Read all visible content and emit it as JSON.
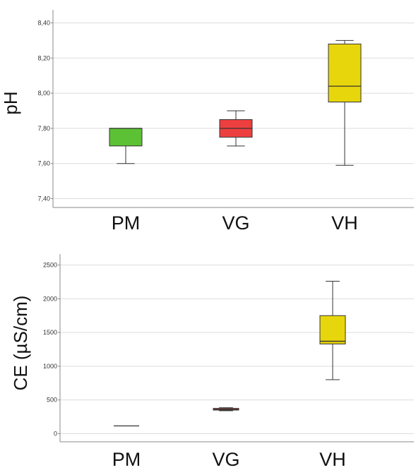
{
  "chart_data": [
    {
      "type": "boxplot",
      "ylabel": "pH",
      "ylim": [
        7.35,
        8.45
      ],
      "yticks": [
        7.4,
        7.6,
        7.8,
        8.0,
        8.2,
        8.4
      ],
      "ytick_labels": [
        "7,40",
        "7,60",
        "7,80",
        "8,00",
        "8,20",
        "8,40"
      ],
      "grid": true,
      "categories": [
        "PM",
        "VG",
        "VH"
      ],
      "boxes": [
        {
          "category": "PM",
          "min": 7.6,
          "q1": 7.7,
          "median": 7.8,
          "q3": 7.8,
          "max": 7.8,
          "color": "#5cc134"
        },
        {
          "category": "VG",
          "min": 7.7,
          "q1": 7.75,
          "median": 7.8,
          "q3": 7.85,
          "max": 7.9,
          "color": "#ee3f3f"
        },
        {
          "category": "VH",
          "min": 7.59,
          "q1": 7.95,
          "median": 8.04,
          "q3": 8.28,
          "max": 8.3,
          "color": "#e8d60c"
        }
      ]
    },
    {
      "type": "boxplot",
      "ylabel": "CE (µS/cm)",
      "ylim": [
        -120,
        2600
      ],
      "yticks": [
        0,
        500,
        1000,
        1500,
        2000,
        2500
      ],
      "ytick_labels": [
        "0",
        "500",
        "1000",
        "1500",
        "2000",
        "2500"
      ],
      "grid": true,
      "categories": [
        "PM",
        "VG",
        "VH"
      ],
      "boxes": [
        {
          "category": "PM",
          "min": 115,
          "q1": 115,
          "median": 115,
          "q3": 115,
          "max": 115,
          "color": "#5cc134"
        },
        {
          "category": "VG",
          "min": 340,
          "q1": 350,
          "median": 360,
          "q3": 375,
          "max": 385,
          "color": "#ee3f3f"
        },
        {
          "category": "VH",
          "min": 800,
          "q1": 1330,
          "median": 1370,
          "q3": 1750,
          "max": 2260,
          "color": "#e8d60c"
        }
      ]
    }
  ]
}
